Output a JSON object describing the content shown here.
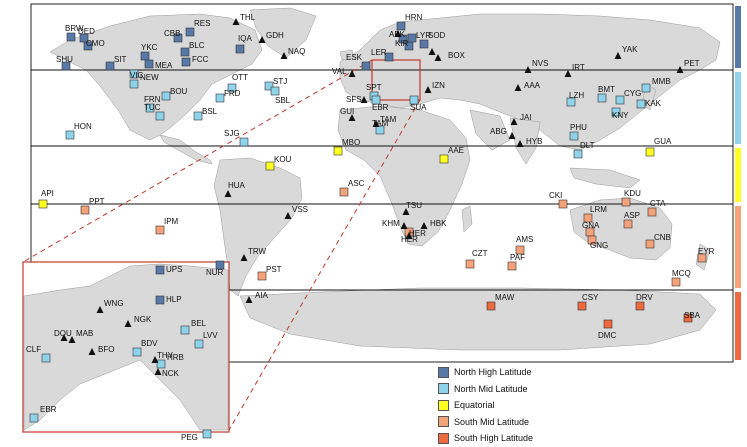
{
  "colors": {
    "north_high": "#5878a8",
    "north_mid": "#8fd3ea",
    "equatorial": "#ffff22",
    "south_mid": "#f4a27a",
    "south_high": "#ec6a3e",
    "land": "#d9d9d9",
    "inset_frame": "#c0392b",
    "triangle": "#111111"
  },
  "legend": [
    {
      "label": "North High Latitude",
      "color_key": "north_high"
    },
    {
      "label": "North Mid Latitude",
      "color_key": "north_mid"
    },
    {
      "label": "Equatorial",
      "color_key": "equatorial"
    },
    {
      "label": "South Mid Latitude",
      "color_key": "south_mid"
    },
    {
      "label": "South High Latitude",
      "color_key": "south_high"
    }
  ],
  "stations": [
    {
      "code": "BRW",
      "cat": "north_high"
    },
    {
      "code": "DED",
      "cat": "north_high"
    },
    {
      "code": "CMO",
      "cat": "north_high"
    },
    {
      "code": "SHU",
      "cat": "north_high"
    },
    {
      "code": "SIT",
      "cat": "north_high"
    },
    {
      "code": "YKC",
      "cat": "north_high"
    },
    {
      "code": "CBB",
      "cat": "north_high"
    },
    {
      "code": "BLC",
      "cat": "north_high"
    },
    {
      "code": "RES",
      "cat": "north_high"
    },
    {
      "code": "FCC",
      "cat": "north_high"
    },
    {
      "code": "MEA",
      "cat": "north_high"
    },
    {
      "code": "IQA",
      "cat": "north_high"
    },
    {
      "code": "HRN",
      "cat": "north_high"
    },
    {
      "code": "ABK",
      "cat": "north_high"
    },
    {
      "code": "SOD",
      "cat": "north_high"
    },
    {
      "code": "KIR",
      "cat": "north_high"
    },
    {
      "code": "LYR",
      "cat": "north_high"
    },
    {
      "code": "LER",
      "cat": "north_high"
    },
    {
      "code": "ESK",
      "cat": "north_high"
    },
    {
      "code": "UPS",
      "cat": "north_high"
    },
    {
      "code": "NUR",
      "cat": "north_high"
    },
    {
      "code": "HLP",
      "cat": "north_high"
    },
    {
      "code": "NEW",
      "cat": "north_mid"
    },
    {
      "code": "VIC",
      "cat": "north_mid"
    },
    {
      "code": "BOU",
      "cat": "north_mid"
    },
    {
      "code": "FRN",
      "cat": "north_mid"
    },
    {
      "code": "TUC",
      "cat": "north_mid"
    },
    {
      "code": "HON",
      "cat": "north_mid"
    },
    {
      "code": "BSL",
      "cat": "north_mid"
    },
    {
      "code": "STJ",
      "cat": "north_mid"
    },
    {
      "code": "SBL",
      "cat": "north_mid"
    },
    {
      "code": "SJG",
      "cat": "north_mid"
    },
    {
      "code": "FRD",
      "cat": "north_mid"
    },
    {
      "code": "OTT",
      "cat": "north_mid"
    },
    {
      "code": "TAM",
      "cat": "north_mid"
    },
    {
      "code": "SPT",
      "cat": "north_mid"
    },
    {
      "code": "EBR",
      "cat": "north_mid"
    },
    {
      "code": "SUA",
      "cat": "north_mid"
    },
    {
      "code": "LZH",
      "cat": "north_mid"
    },
    {
      "code": "PHU",
      "cat": "north_mid"
    },
    {
      "code": "DLT",
      "cat": "north_mid"
    },
    {
      "code": "KAK",
      "cat": "north_mid"
    },
    {
      "code": "MMB",
      "cat": "north_mid"
    },
    {
      "code": "CYG",
      "cat": "north_mid"
    },
    {
      "code": "KNY",
      "cat": "north_mid"
    },
    {
      "code": "BMT",
      "cat": "north_mid"
    },
    {
      "code": "CLF",
      "cat": "north_mid"
    },
    {
      "code": "BDV",
      "cat": "north_mid"
    },
    {
      "code": "BEL",
      "cat": "north_mid"
    },
    {
      "code": "LVV",
      "cat": "north_mid"
    },
    {
      "code": "HRB",
      "cat": "north_mid"
    },
    {
      "code": "API",
      "cat": "equatorial"
    },
    {
      "code": "KOU",
      "cat": "equatorial"
    },
    {
      "code": "MBO",
      "cat": "equatorial"
    },
    {
      "code": "AAE",
      "cat": "equatorial"
    },
    {
      "code": "GUA",
      "cat": "equatorial"
    },
    {
      "code": "PPT",
      "cat": "south_mid"
    },
    {
      "code": "IPM",
      "cat": "south_mid"
    },
    {
      "code": "ASC",
      "cat": "south_mid"
    },
    {
      "code": "PST",
      "cat": "south_mid"
    },
    {
      "code": "CKI",
      "cat": "south_mid"
    },
    {
      "code": "KDU",
      "cat": "south_mid"
    },
    {
      "code": "LRM",
      "cat": "south_mid"
    },
    {
      "code": "ASP",
      "cat": "south_mid"
    },
    {
      "code": "CTA",
      "cat": "south_mid"
    },
    {
      "code": "GNA",
      "cat": "south_mid"
    },
    {
      "code": "GNG",
      "cat": "south_mid"
    },
    {
      "code": "CNB",
      "cat": "south_mid"
    },
    {
      "code": "EYR",
      "cat": "south_mid"
    },
    {
      "code": "MCQ",
      "cat": "south_mid"
    },
    {
      "code": "AMS",
      "cat": "south_mid"
    },
    {
      "code": "PAF",
      "cat": "south_mid"
    },
    {
      "code": "CZT",
      "cat": "south_mid"
    },
    {
      "code": "HER",
      "cat": "south_mid"
    },
    {
      "code": "MAW",
      "cat": "south_high"
    },
    {
      "code": "CSY",
      "cat": "south_high"
    },
    {
      "code": "DRV",
      "cat": "south_high"
    },
    {
      "code": "DMC",
      "cat": "south_high"
    },
    {
      "code": "SBA",
      "cat": "south_high"
    },
    {
      "code": "PEG",
      "cat": "north_mid"
    }
  ],
  "triangle_stations": [
    "THL",
    "GDH",
    "NAQ",
    "VAL",
    "SFS",
    "GUI",
    "TAM",
    "NVS",
    "YAK",
    "PET",
    "IRT",
    "AAA",
    "JAI",
    "ABG",
    "HYB",
    "HUA",
    "VSS",
    "TRW",
    "AIA",
    "TSU",
    "KHM",
    "HBK",
    "HER",
    "BOX",
    "IZN",
    "WNG",
    "MAB",
    "DOU",
    "NGK",
    "BFO",
    "THY",
    "NCK",
    "SOD",
    "ABK"
  ]
}
